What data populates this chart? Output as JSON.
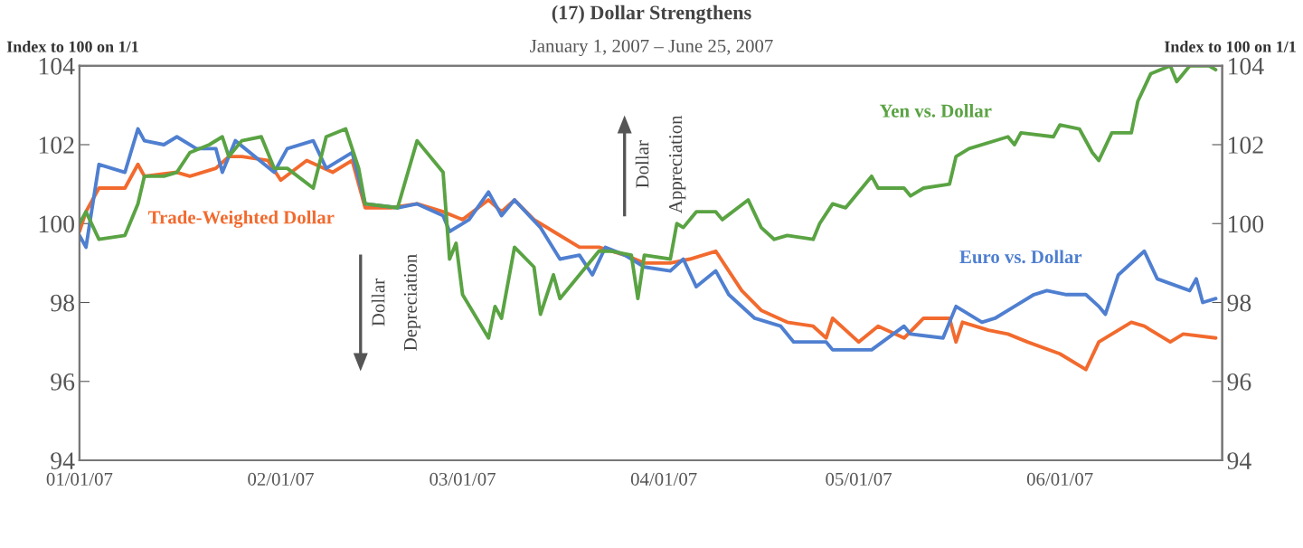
{
  "chart_data": {
    "type": "line",
    "title": "(17) Dollar Strengthens",
    "subtitle": "January 1, 2007 – June 25, 2007",
    "ylabel": "Index to 100 on 1/1",
    "y2label": "Index to 100 on 1/1",
    "xlim": [
      "2007-01-01",
      "2007-06-26"
    ],
    "xticks": [
      {
        "value": "2007-01-01",
        "label": "01/01/07"
      },
      {
        "value": "2007-02-01",
        "label": "02/01/07"
      },
      {
        "value": "2007-03-01",
        "label": "03/01/07"
      },
      {
        "value": "2007-04-01",
        "label": "04/01/07"
      },
      {
        "value": "2007-05-01",
        "label": "05/01/07"
      },
      {
        "value": "2007-06-01",
        "label": "06/01/07"
      }
    ],
    "ylim": [
      94,
      104
    ],
    "yticks": [
      94,
      96,
      98,
      100,
      102,
      104
    ],
    "y2lim": [
      94,
      104
    ],
    "y2ticks": [
      94,
      96,
      98,
      100,
      102,
      104
    ],
    "grid": false,
    "line_style": "solid",
    "marker": "none",
    "annotations": [
      "Dollar Depreciation",
      "Dollar Appreciation"
    ],
    "series": [
      {
        "name": "Trade-Weighted Dollar",
        "color": "#f26a2e",
        "x": [
          "2007-01-01",
          "2007-01-02",
          "2007-01-04",
          "2007-01-08",
          "2007-01-10",
          "2007-01-11",
          "2007-01-16",
          "2007-01-18",
          "2007-01-22",
          "2007-01-24",
          "2007-01-26",
          "2007-01-30",
          "2007-02-01",
          "2007-02-05",
          "2007-02-09",
          "2007-02-12",
          "2007-02-14",
          "2007-02-18",
          "2007-02-22",
          "2007-02-26",
          "2007-03-01",
          "2007-03-05",
          "2007-03-07",
          "2007-03-09",
          "2007-03-12",
          "2007-03-15",
          "2007-03-19",
          "2007-03-22",
          "2007-03-26",
          "2007-03-29",
          "2007-04-02",
          "2007-04-05",
          "2007-04-09",
          "2007-04-11",
          "2007-04-13",
          "2007-04-16",
          "2007-04-20",
          "2007-04-24",
          "2007-04-26",
          "2007-04-27",
          "2007-05-01",
          "2007-05-04",
          "2007-05-08",
          "2007-05-11",
          "2007-05-15",
          "2007-05-16",
          "2007-05-17",
          "2007-05-21",
          "2007-05-24",
          "2007-05-27",
          "2007-06-01",
          "2007-06-05",
          "2007-06-07",
          "2007-06-12",
          "2007-06-14",
          "2007-06-18",
          "2007-06-20",
          "2007-06-25"
        ],
        "values": [
          99.8,
          100.3,
          100.9,
          100.9,
          101.5,
          101.2,
          101.3,
          101.2,
          101.4,
          101.7,
          101.7,
          101.6,
          101.1,
          101.6,
          101.3,
          101.6,
          100.4,
          100.4,
          100.5,
          100.3,
          100.1,
          100.6,
          100.3,
          100.6,
          100.1,
          99.8,
          99.4,
          99.4,
          99.2,
          99.0,
          99.0,
          99.1,
          99.3,
          98.8,
          98.3,
          97.8,
          97.5,
          97.4,
          97.1,
          97.6,
          97.0,
          97.4,
          97.1,
          97.6,
          97.6,
          97.0,
          97.5,
          97.3,
          97.2,
          97.0,
          96.7,
          96.3,
          97.0,
          97.5,
          97.4,
          97.0,
          97.2,
          97.1
        ]
      },
      {
        "name": "Euro vs. Dollar",
        "color": "#4f7fd0",
        "x": [
          "2007-01-01",
          "2007-01-02",
          "2007-01-04",
          "2007-01-08",
          "2007-01-10",
          "2007-01-11",
          "2007-01-14",
          "2007-01-16",
          "2007-01-19",
          "2007-01-22",
          "2007-01-23",
          "2007-01-25",
          "2007-01-31",
          "2007-02-02",
          "2007-02-06",
          "2007-02-08",
          "2007-02-12",
          "2007-02-14",
          "2007-02-19",
          "2007-02-22",
          "2007-02-26",
          "2007-02-27",
          "2007-03-02",
          "2007-03-05",
          "2007-03-07",
          "2007-03-09",
          "2007-03-13",
          "2007-03-16",
          "2007-03-19",
          "2007-03-21",
          "2007-03-23",
          "2007-03-26",
          "2007-03-29",
          "2007-04-02",
          "2007-04-04",
          "2007-04-06",
          "2007-04-09",
          "2007-04-11",
          "2007-04-15",
          "2007-04-19",
          "2007-04-21",
          "2007-04-26",
          "2007-04-27",
          "2007-04-30",
          "2007-05-03",
          "2007-05-08",
          "2007-05-09",
          "2007-05-14",
          "2007-05-16",
          "2007-05-20",
          "2007-05-22",
          "2007-05-25",
          "2007-05-28",
          "2007-05-30",
          "2007-06-02",
          "2007-06-05",
          "2007-06-07",
          "2007-06-08",
          "2007-06-10",
          "2007-06-14",
          "2007-06-16",
          "2007-06-21",
          "2007-06-22",
          "2007-06-23",
          "2007-06-25"
        ],
        "values": [
          99.7,
          99.4,
          101.5,
          101.3,
          102.4,
          102.1,
          102.0,
          102.2,
          101.9,
          101.9,
          101.3,
          102.1,
          101.3,
          101.9,
          102.1,
          101.4,
          101.8,
          100.5,
          100.4,
          100.5,
          100.2,
          99.8,
          100.1,
          100.8,
          100.2,
          100.6,
          99.9,
          99.1,
          99.2,
          98.7,
          99.4,
          99.2,
          98.9,
          98.8,
          99.1,
          98.4,
          98.8,
          98.2,
          97.6,
          97.4,
          97.0,
          97.0,
          96.8,
          96.8,
          96.8,
          97.4,
          97.2,
          97.1,
          97.9,
          97.5,
          97.6,
          97.9,
          98.2,
          98.3,
          98.2,
          98.2,
          97.9,
          97.7,
          98.7,
          99.3,
          98.6,
          98.3,
          98.6,
          98.0,
          98.1
        ]
      },
      {
        "name": "Yen vs. Dollar",
        "color": "#5aa343",
        "x": [
          "2007-01-01",
          "2007-01-02",
          "2007-01-04",
          "2007-01-08",
          "2007-01-10",
          "2007-01-11",
          "2007-01-14",
          "2007-01-16",
          "2007-01-18",
          "2007-01-21",
          "2007-01-23",
          "2007-01-24",
          "2007-01-26",
          "2007-01-29",
          "2007-01-31",
          "2007-02-02",
          "2007-02-06",
          "2007-02-08",
          "2007-02-11",
          "2007-02-13",
          "2007-02-14",
          "2007-02-19",
          "2007-02-22",
          "2007-02-25",
          "2007-02-26",
          "2007-02-27",
          "2007-02-28",
          "2007-03-01",
          "2007-03-05",
          "2007-03-06",
          "2007-03-07",
          "2007-03-09",
          "2007-03-12",
          "2007-03-13",
          "2007-03-15",
          "2007-03-16",
          "2007-03-19",
          "2007-03-22",
          "2007-03-24",
          "2007-03-27",
          "2007-03-28",
          "2007-03-29",
          "2007-04-02",
          "2007-04-03",
          "2007-04-04",
          "2007-04-06",
          "2007-04-09",
          "2007-04-10",
          "2007-04-14",
          "2007-04-16",
          "2007-04-18",
          "2007-04-20",
          "2007-04-24",
          "2007-04-25",
          "2007-04-27",
          "2007-04-29",
          "2007-05-03",
          "2007-05-04",
          "2007-05-08",
          "2007-05-09",
          "2007-05-11",
          "2007-05-15",
          "2007-05-16",
          "2007-05-18",
          "2007-05-24",
          "2007-05-25",
          "2007-05-26",
          "2007-05-31",
          "2007-06-01",
          "2007-06-04",
          "2007-06-06",
          "2007-06-07",
          "2007-06-09",
          "2007-06-12",
          "2007-06-13",
          "2007-06-15",
          "2007-06-18",
          "2007-06-19",
          "2007-06-21",
          "2007-06-24",
          "2007-06-25"
        ],
        "values": [
          100.0,
          100.3,
          99.6,
          99.7,
          100.5,
          101.2,
          101.2,
          101.3,
          101.8,
          102.0,
          102.2,
          101.7,
          102.1,
          102.2,
          101.4,
          101.4,
          100.9,
          102.2,
          102.4,
          101.4,
          100.5,
          100.4,
          102.1,
          101.5,
          101.3,
          99.1,
          99.5,
          98.2,
          97.1,
          97.9,
          97.6,
          99.4,
          98.9,
          97.7,
          98.7,
          98.1,
          98.7,
          99.3,
          99.3,
          99.2,
          98.1,
          99.2,
          99.1,
          100.0,
          99.9,
          100.3,
          100.3,
          100.1,
          100.6,
          99.9,
          99.6,
          99.7,
          99.6,
          100.0,
          100.5,
          100.4,
          101.2,
          100.9,
          100.9,
          100.7,
          100.9,
          101.0,
          101.7,
          101.9,
          102.2,
          102.0,
          102.3,
          102.2,
          102.5,
          102.4,
          101.8,
          101.6,
          102.3,
          102.3,
          103.1,
          103.8,
          104.0,
          103.6,
          104.0,
          104.0,
          103.9
        ]
      }
    ]
  }
}
